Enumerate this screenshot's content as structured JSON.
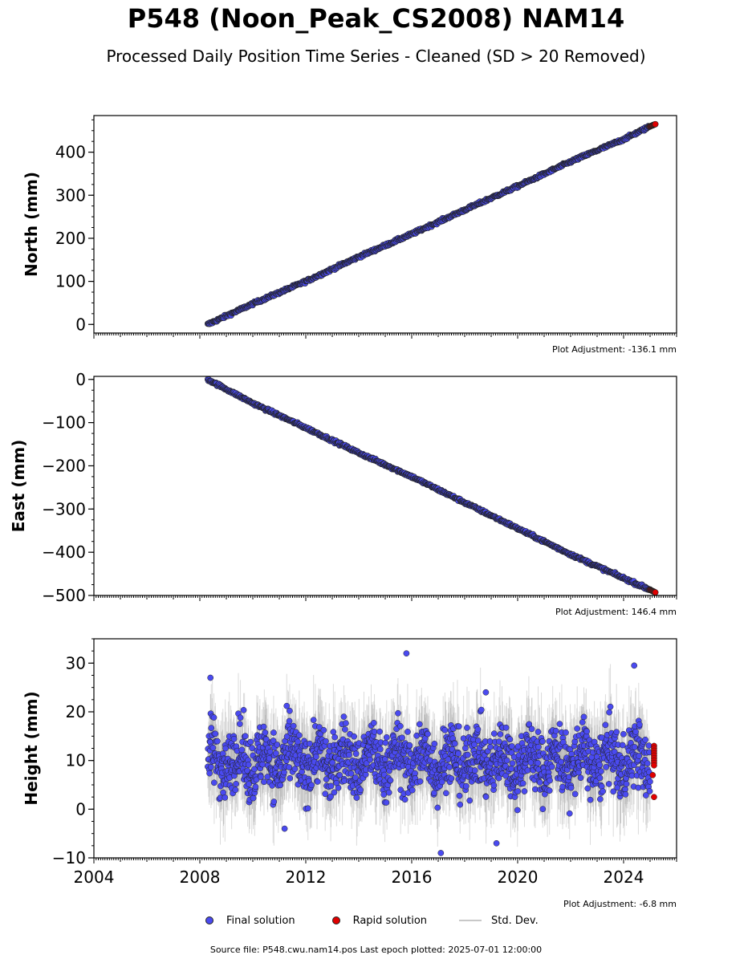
{
  "title": "P548 (Noon_Peak_CS2008) NAM14",
  "subtitle": "Processed Daily Position Time Series - Cleaned (SD > 20 Removed)",
  "legend": {
    "final": "Final solution",
    "rapid": "Rapid solution",
    "std": "Std. Dev."
  },
  "footer": "Source file: P548.cwu.nam14.pos  Last epoch plotted: 2025-07-01 12:00:00",
  "colors": {
    "final": "#4a4af0",
    "rapid": "#e00000",
    "std": "#9a9a9a",
    "edge": "#222222"
  },
  "chart_data": [
    {
      "type": "scatter",
      "ylabel": "North (mm)",
      "adjustment": "Plot Adjustment: -136.1 mm",
      "xlim": [
        2004,
        2026
      ],
      "ylim": [
        -20,
        485
      ],
      "xticks": [
        2004,
        2008,
        2012,
        2016,
        2020,
        2024
      ],
      "yticks": [
        0,
        100,
        200,
        300,
        400
      ],
      "ytick_labels": [
        "0",
        "100",
        "200",
        "300",
        "400"
      ],
      "x_start": 2008.3,
      "x_end": 2025.2,
      "rapid_start": 2025.0,
      "series": [
        {
          "name": "Final solution",
          "x": [
            2008.3,
            2010.0,
            2012.0,
            2014.0,
            2016.0,
            2018.0,
            2020.0,
            2022.0,
            2024.0,
            2025.0
          ],
          "y": [
            0,
            48,
            100,
            157,
            210,
            266,
            321,
            378,
            430,
            460
          ]
        },
        {
          "name": "Rapid solution",
          "x": [
            2025.0,
            2025.2
          ],
          "y": [
            460,
            465
          ]
        }
      ]
    },
    {
      "type": "scatter",
      "ylabel": "East (mm)",
      "adjustment": "Plot Adjustment: 146.4 mm",
      "xlim": [
        2004,
        2026
      ],
      "ylim": [
        -500,
        7
      ],
      "xticks": [
        2004,
        2008,
        2012,
        2016,
        2020,
        2024
      ],
      "yticks": [
        0,
        -100,
        -200,
        -300,
        -400,
        -500
      ],
      "ytick_labels": [
        "0",
        "−100",
        "−200",
        "−300",
        "−400",
        "−500"
      ],
      "x_start": 2008.3,
      "x_end": 2025.2,
      "rapid_start": 2025.0,
      "series": [
        {
          "name": "Final solution",
          "x": [
            2008.3,
            2010.0,
            2012.0,
            2014.0,
            2016.0,
            2018.0,
            2020.0,
            2022.0,
            2024.0,
            2025.0
          ],
          "y": [
            0,
            -55,
            -112,
            -170,
            -225,
            -285,
            -345,
            -405,
            -460,
            -487
          ]
        },
        {
          "name": "Rapid solution",
          "x": [
            2025.0,
            2025.2
          ],
          "y": [
            -487,
            -493
          ]
        }
      ]
    },
    {
      "type": "scatter",
      "ylabel": "Height (mm)",
      "adjustment": "Plot Adjustment: -6.8 mm",
      "xlim": [
        2004,
        2026
      ],
      "ylim": [
        -10,
        35
      ],
      "xticks": [
        2004,
        2008,
        2012,
        2016,
        2020,
        2024
      ],
      "xtick_labels": [
        "2004",
        "2008",
        "2012",
        "2016",
        "2020",
        "2024"
      ],
      "yticks": [
        -10,
        0,
        10,
        20,
        30
      ],
      "ytick_labels": [
        "−10",
        "0",
        "10",
        "20",
        "30"
      ],
      "x_start": 2008.3,
      "x_end": 2025.2,
      "rapid_start": 2025.0,
      "series": [
        {
          "name": "Final solution",
          "mean": 10,
          "scatter": 4.5,
          "x": [
            2008.4,
            2011.2,
            2015.8,
            2017.1,
            2018.8,
            2019.2,
            2024.4
          ],
          "y": [
            27,
            -4,
            32,
            -9,
            24,
            -7,
            29.5
          ]
        },
        {
          "name": "Rapid solution",
          "x": [
            2025.0,
            2025.2
          ],
          "y": [
            13,
            2.5
          ]
        }
      ]
    }
  ]
}
